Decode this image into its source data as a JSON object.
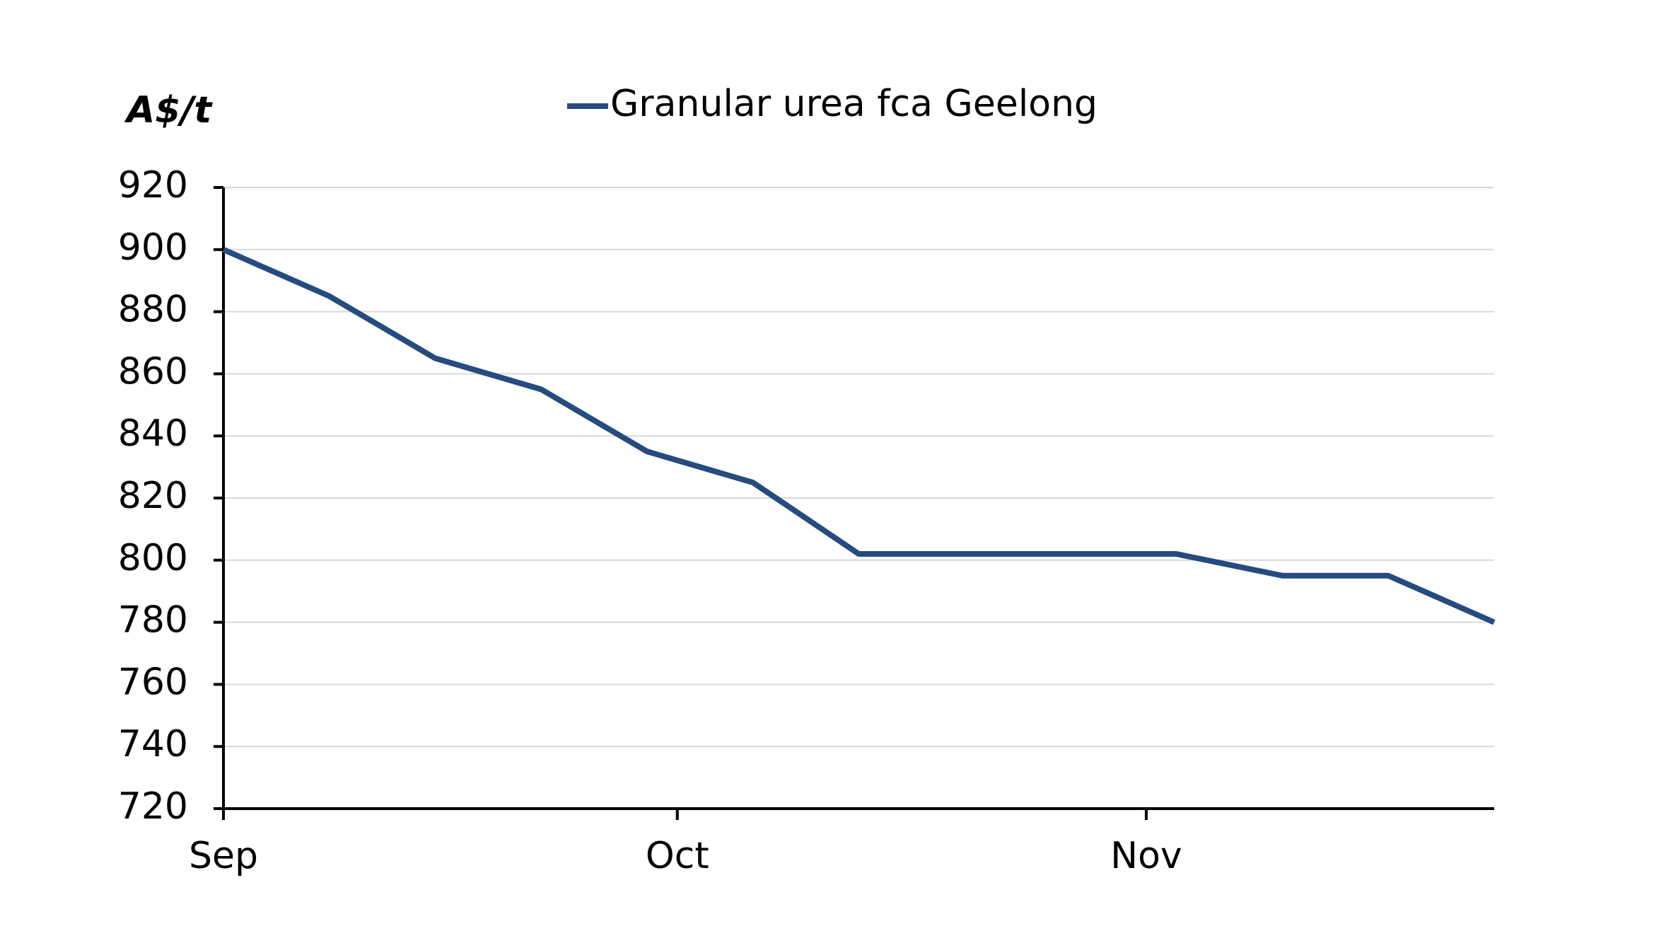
{
  "chart_data": {
    "type": "line",
    "y_label": "A$/t",
    "x": [
      0,
      7,
      14,
      21,
      28,
      35,
      42,
      49,
      56,
      63,
      70,
      77,
      84
    ],
    "xlim": [
      0,
      84
    ],
    "xticks": [
      {
        "value": 0,
        "label": "Sep"
      },
      {
        "value": 30,
        "label": "Oct"
      },
      {
        "value": 61,
        "label": "Nov"
      }
    ],
    "series": [
      {
        "name": "Granular urea fca Geelong",
        "color": "#254b7f",
        "values": [
          900,
          885,
          865,
          855,
          835,
          825,
          802,
          802,
          802,
          802,
          795,
          795,
          780
        ]
      }
    ],
    "ylim": [
      720,
      920
    ],
    "yticks": [
      720,
      740,
      760,
      780,
      800,
      820,
      840,
      860,
      880,
      900,
      920
    ],
    "grid": true,
    "legend": "top"
  }
}
